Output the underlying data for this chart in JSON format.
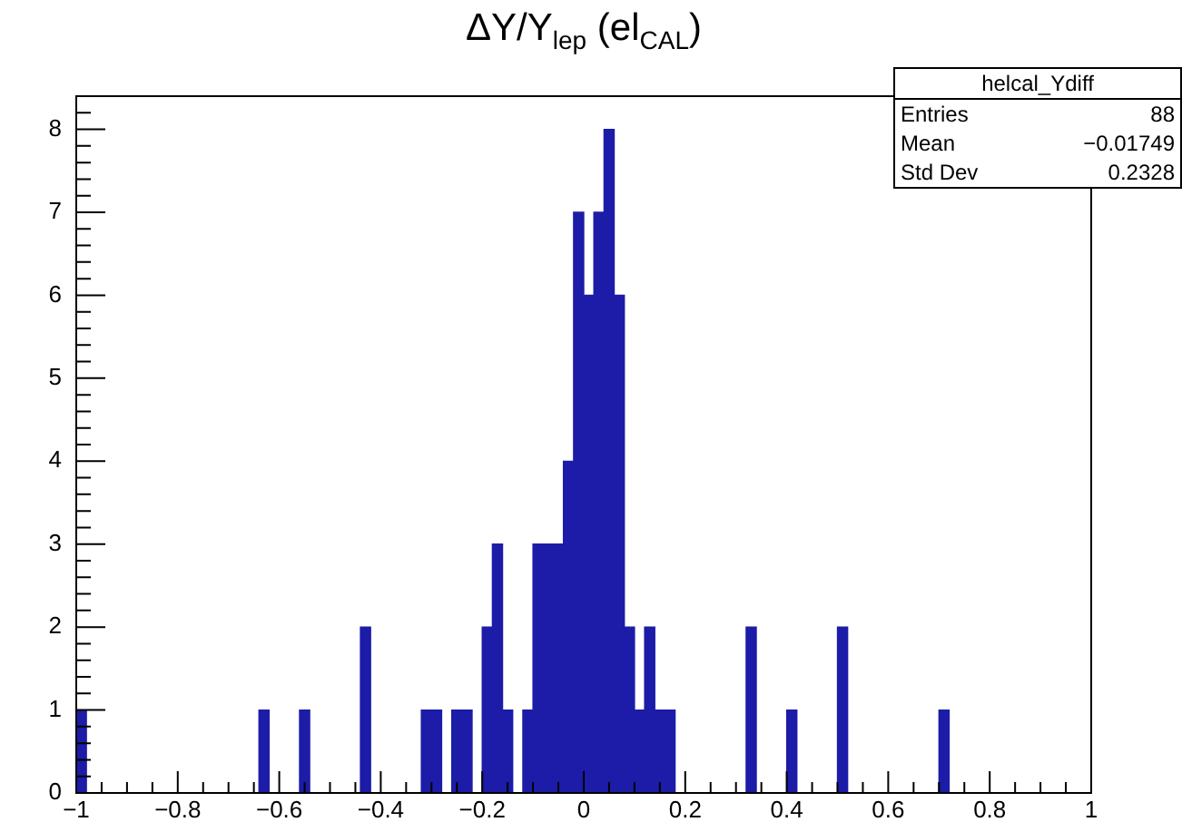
{
  "chart_data": {
    "type": "histogram",
    "title": "ΔY/Y$_{lep}$ (el$_{CAL}$)",
    "bins": [
      -1,
      -0.98,
      -0.96,
      -0.94,
      -0.92,
      -0.9,
      -0.88,
      -0.86,
      -0.84,
      -0.82,
      -0.8,
      -0.78,
      -0.76,
      -0.74,
      -0.72,
      -0.7,
      -0.68,
      -0.66,
      -0.64,
      -0.62,
      -0.6,
      -0.58,
      -0.56,
      -0.54,
      -0.52,
      -0.5,
      -0.48,
      -0.46,
      -0.44,
      -0.42,
      -0.4,
      -0.38,
      -0.36,
      -0.34,
      -0.32,
      -0.3,
      -0.28,
      -0.26,
      -0.24,
      -0.22,
      -0.2,
      -0.18,
      -0.16,
      -0.14,
      -0.12,
      -0.1,
      -0.08,
      -0.06,
      -0.04,
      -0.02,
      0,
      0.02,
      0.04,
      0.06,
      0.08,
      0.1,
      0.12,
      0.14,
      0.16,
      0.18,
      0.2,
      0.22,
      0.24,
      0.26,
      0.28,
      0.3,
      0.32,
      0.34,
      0.36,
      0.38,
      0.4,
      0.42,
      0.44,
      0.46,
      0.48,
      0.5,
      0.52,
      0.54,
      0.56,
      0.58,
      0.6,
      0.62,
      0.64,
      0.66,
      0.68,
      0.7,
      0.72,
      0.74,
      0.76,
      0.78,
      0.8,
      0.82,
      0.84,
      0.86,
      0.88,
      0.9,
      0.92,
      0.94,
      0.96,
      0.98,
      1
    ],
    "values": [
      1,
      0,
      0,
      0,
      0,
      0,
      0,
      0,
      0,
      0,
      0,
      0,
      0,
      0,
      0,
      0,
      0,
      0,
      1,
      0,
      0,
      0,
      1,
      0,
      0,
      0,
      0,
      0,
      2,
      0,
      0,
      0,
      0,
      0,
      1,
      1,
      0,
      1,
      1,
      0,
      2,
      3,
      1,
      0,
      1,
      3,
      3,
      3,
      4,
      7,
      6,
      7,
      8,
      6,
      2,
      1,
      2,
      1,
      1,
      0,
      0,
      0,
      0,
      0,
      0,
      0,
      2,
      0,
      0,
      0,
      1,
      0,
      0,
      0,
      0,
      2,
      0,
      0,
      0,
      0,
      0,
      0,
      0,
      0,
      0,
      1,
      0,
      0,
      0,
      0,
      0,
      0,
      0,
      0,
      0,
      0,
      0,
      0,
      0,
      0
    ],
    "color": "#1c1ca8",
    "xlim": [
      -1,
      1
    ],
    "xticks": [
      {
        "value": -1,
        "label": "−1"
      },
      {
        "value": -0.95,
        "label": null
      },
      {
        "value": -0.9,
        "label": null
      },
      {
        "value": -0.85,
        "label": null
      },
      {
        "value": -0.8,
        "label": "−0.8"
      },
      {
        "value": -0.75,
        "label": null
      },
      {
        "value": -0.7,
        "label": null
      },
      {
        "value": -0.65,
        "label": null
      },
      {
        "value": -0.6,
        "label": "−0.6"
      },
      {
        "value": -0.55,
        "label": null
      },
      {
        "value": -0.5,
        "label": null
      },
      {
        "value": -0.45,
        "label": null
      },
      {
        "value": -0.4,
        "label": "−0.4"
      },
      {
        "value": -0.35,
        "label": null
      },
      {
        "value": -0.3,
        "label": null
      },
      {
        "value": -0.25,
        "label": null
      },
      {
        "value": -0.2,
        "label": "−0.2"
      },
      {
        "value": -0.15,
        "label": null
      },
      {
        "value": -0.1,
        "label": null
      },
      {
        "value": -0.05,
        "label": null
      },
      0,
      {
        "value": 0.05,
        "label": null
      },
      {
        "value": 0.1,
        "label": null
      },
      {
        "value": 0.15,
        "label": null
      },
      0.2,
      {
        "value": 0.25,
        "label": null
      },
      {
        "value": 0.3,
        "label": null
      },
      {
        "value": 0.35,
        "label": null
      },
      0.4,
      {
        "value": 0.45,
        "label": null
      },
      {
        "value": 0.5,
        "label": null
      },
      {
        "value": 0.55,
        "label": null
      },
      0.6,
      {
        "value": 0.65,
        "label": null
      },
      {
        "value": 0.7,
        "label": null
      },
      {
        "value": 0.75,
        "label": null
      },
      0.8,
      {
        "value": 0.85,
        "label": null
      },
      {
        "value": 0.9,
        "label": null
      },
      {
        "value": 0.95,
        "label": null
      },
      1
    ],
    "ylim": [
      0,
      8.4
    ],
    "yticks": [
      0,
      {
        "value": 0.2,
        "label": null
      },
      {
        "value": 0.4,
        "label": null
      },
      {
        "value": 0.6,
        "label": null
      },
      {
        "value": 0.8,
        "label": null
      },
      1,
      {
        "value": 1.2,
        "label": null
      },
      {
        "value": 1.4,
        "label": null
      },
      {
        "value": 1.6,
        "label": null
      },
      {
        "value": 1.8,
        "label": null
      },
      2,
      {
        "value": 2.2,
        "label": null
      },
      {
        "value": 2.4,
        "label": null
      },
      {
        "value": 2.6,
        "label": null
      },
      {
        "value": 2.8,
        "label": null
      },
      3,
      {
        "value": 3.2,
        "label": null
      },
      {
        "value": 3.4,
        "label": null
      },
      {
        "value": 3.6,
        "label": null
      },
      {
        "value": 3.8,
        "label": null
      },
      4,
      {
        "value": 4.2,
        "label": null
      },
      {
        "value": 4.4,
        "label": null
      },
      {
        "value": 4.6,
        "label": null
      },
      {
        "value": 4.8,
        "label": null
      },
      5,
      {
        "value": 5.2,
        "label": null
      },
      {
        "value": 5.4,
        "label": null
      },
      {
        "value": 5.6,
        "label": null
      },
      {
        "value": 5.8,
        "label": null
      },
      6,
      {
        "value": 6.2,
        "label": null
      },
      {
        "value": 6.4,
        "label": null
      },
      {
        "value": 6.6,
        "label": null
      },
      {
        "value": 6.8,
        "label": null
      },
      7,
      {
        "value": 7.2,
        "label": null
      },
      {
        "value": 7.4,
        "label": null
      },
      {
        "value": 7.6,
        "label": null
      },
      {
        "value": 7.8,
        "label": null
      },
      8,
      {
        "value": 8.2,
        "label": null
      }
    ],
    "annotations": [
      "helcal_Ydiff",
      "Entries 88",
      "Mean −0.01749",
      "Std Dev 0.2328"
    ]
  }
}
